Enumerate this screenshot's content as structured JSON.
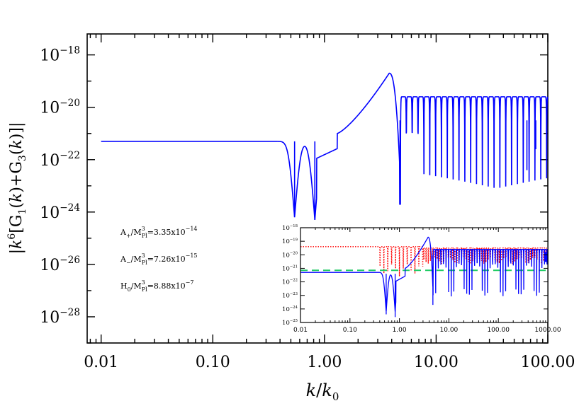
{
  "chart_data": [
    {
      "type": "line",
      "title": "",
      "xlabel": "k/k0",
      "ylabel": "|k^6[G1(k)+G3(k)]|",
      "xscale": "log",
      "yscale": "log",
      "xlim": [
        0.0075,
        100
      ],
      "ylim_exp": [
        -29,
        -17.2
      ],
      "x_ticks": [
        {
          "value": 0.01,
          "label": "0.01"
        },
        {
          "value": 0.1,
          "label": "0.10"
        },
        {
          "value": 1,
          "label": "1.00"
        },
        {
          "value": 10,
          "label": "10.00"
        },
        {
          "value": 100,
          "label": "100.00"
        }
      ],
      "y_ticks": [
        {
          "exp": -18,
          "base": "10",
          "power": "−18"
        },
        {
          "exp": -20,
          "base": "10",
          "power": "−20"
        },
        {
          "exp": -22,
          "base": "10",
          "power": "−22"
        },
        {
          "exp": -24,
          "base": "10",
          "power": "−24"
        },
        {
          "exp": -26,
          "base": "10",
          "power": "−26"
        },
        {
          "exp": -28,
          "base": "10",
          "power": "−28"
        }
      ],
      "series": [
        {
          "color": "#0000ff",
          "plateau_exp": -21.3,
          "dips_x": [
            0.54,
            0.82,
            4.75
          ],
          "dip_floor_exp": [
            -24.2,
            -24.3,
            -23.7
          ],
          "peak": {
            "x": 3.8,
            "y_exp": -18.7
          },
          "oscillation_band_exp": [
            -20.5,
            -19.4
          ]
        }
      ],
      "annotations": [
        {
          "prefix": "A",
          "sub": "+",
          "mid": "/M",
          "msub": "Pl",
          "msup": "3",
          "value": "=3.35x10",
          "vsup": "−14"
        },
        {
          "prefix": "A",
          "sub": "−",
          "mid": "/M",
          "msub": "Pl",
          "msup": "3",
          "value": "=7.26x10",
          "vsup": "−15"
        },
        {
          "prefix": "H",
          "sub": "0",
          "mid": "/M",
          "msub": "Pl",
          "msup": "3",
          "value": "=8.88x10",
          "vsup": "−7"
        }
      ]
    },
    {
      "type": "line",
      "inset": true,
      "xscale": "log",
      "yscale": "log",
      "xlim": [
        0.01,
        1000
      ],
      "ylim_exp": [
        -25,
        -18
      ],
      "x_ticks": [
        {
          "value": 0.01,
          "label": "0.01"
        },
        {
          "value": 0.1,
          "label": "0.10"
        },
        {
          "value": 1,
          "label": "1.00"
        },
        {
          "value": 10,
          "label": "10.00"
        },
        {
          "value": 100,
          "label": "100.00"
        },
        {
          "value": 1000,
          "label": "1000.00"
        }
      ],
      "y_ticks": [
        {
          "exp": -18,
          "base": "10",
          "power": "−18"
        },
        {
          "exp": -19,
          "base": "10",
          "power": "−19"
        },
        {
          "exp": -20,
          "base": "10",
          "power": "−20"
        },
        {
          "exp": -21,
          "base": "10",
          "power": "−21"
        },
        {
          "exp": -22,
          "base": "10",
          "power": "−22"
        },
        {
          "exp": -23,
          "base": "10",
          "power": "−23"
        },
        {
          "exp": -24,
          "base": "10",
          "power": "−24"
        },
        {
          "exp": -25,
          "base": "10",
          "power": "−25"
        }
      ],
      "series": [
        {
          "color": "#0000ff",
          "style": "solid",
          "plateau_exp": -21.3,
          "dips_x": [
            0.54,
            0.82,
            4.75
          ],
          "peak": {
            "x": 3.8,
            "y_exp": -18.7
          },
          "oscillation_band_exp": [
            -20.5,
            -19.4
          ]
        },
        {
          "color": "#ff0000",
          "style": "dotted",
          "plateau_exp": -19.4,
          "dips_x": [
            0.55,
            1.6,
            2.7
          ],
          "oscillation_band_exp": [
            -21.5,
            -19.3
          ]
        },
        {
          "color": "#22cc66",
          "style": "dashed",
          "constant_exp": -21.15
        }
      ]
    }
  ]
}
